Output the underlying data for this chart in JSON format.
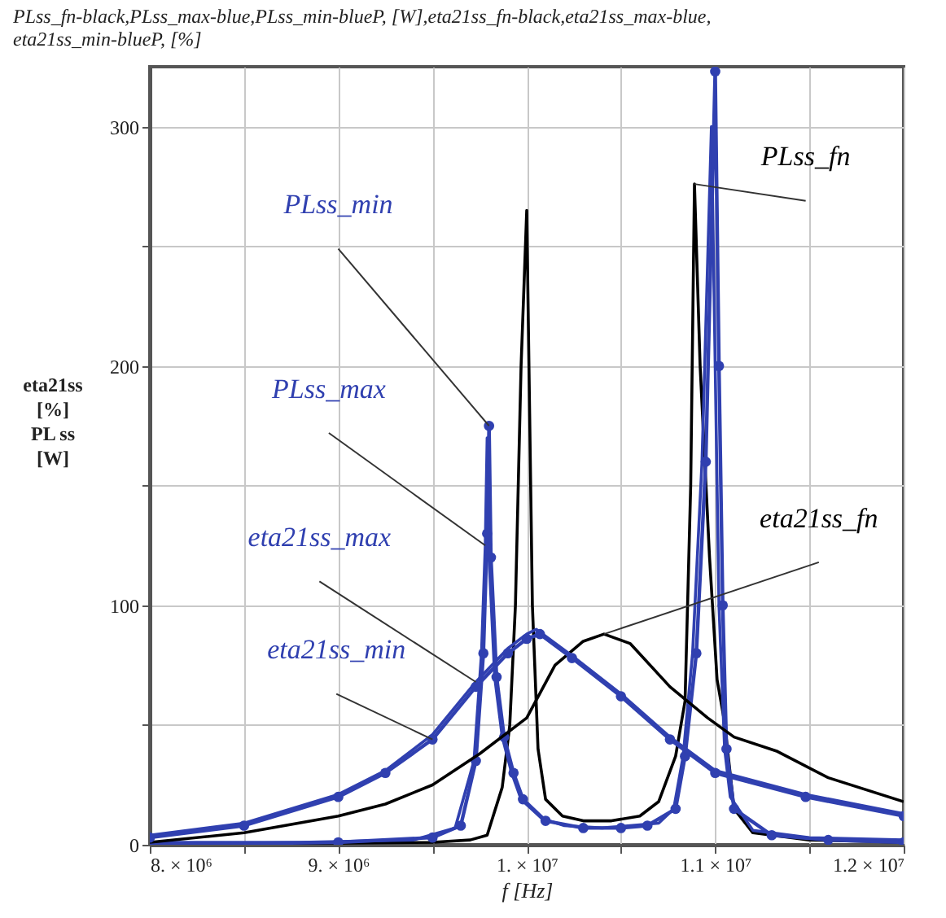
{
  "chart_data": {
    "type": "line",
    "title": "PLss_fn-black,PLss_max-blue,PLss_min-blueP, [W],eta21ss_fn-black,eta21ss_max-blue,\neta21ss_min-blueP, [%]",
    "xlabel": "f [Hz]",
    "ylabel": "eta21ss\n[%]\n\nPL ss\n[W]",
    "xlim": [
      8000000,
      12000000
    ],
    "ylim": [
      0,
      325
    ],
    "xticks": [
      {
        "value": 8000000,
        "label": "8. × 10⁶"
      },
      {
        "value": 8500000,
        "label": null
      },
      {
        "value": 9000000,
        "label": "9. × 10⁶"
      },
      {
        "value": 9500000,
        "label": null
      },
      {
        "value": 10000000,
        "label": "1. × 10⁷"
      },
      {
        "value": 10500000,
        "label": null
      },
      {
        "value": 11000000,
        "label": "1.1 × 10⁷"
      },
      {
        "value": 11500000,
        "label": null
      },
      {
        "value": 12000000,
        "label": "1.2 × 10⁷"
      }
    ],
    "yticks": [
      0,
      {
        "value": 50,
        "label": null
      },
      100,
      {
        "value": 150,
        "label": null
      },
      200,
      {
        "value": 250,
        "label": null
      },
      300
    ],
    "grid": true,
    "series": [
      {
        "name": "PLss_fn",
        "color": "#000000",
        "x": [
          8000000,
          9500000,
          9700000,
          9790000,
          9870000,
          9910000,
          9940000,
          9970000,
          10000000,
          10030000,
          10060000,
          10100000,
          10190000,
          10300000,
          10450000,
          10600000,
          10700000,
          10790000,
          10840000,
          10870000,
          10890000,
          10920000,
          10970000,
          11010000,
          11050000,
          11100000,
          11200000,
          11500000,
          12000000
        ],
        "values": [
          0,
          1,
          2,
          4,
          24,
          50,
          100,
          200,
          265,
          100,
          40,
          19,
          12,
          10,
          10,
          12,
          18,
          37,
          60,
          150,
          276,
          200,
          120,
          69,
          51,
          15,
          5,
          2,
          1
        ]
      },
      {
        "name": "PLss_max",
        "color": "#3040b0",
        "x": [
          8000000,
          8800000,
          9400000,
          9620000,
          9720000,
          9760000,
          9780000,
          9790000,
          9800000,
          9830000,
          9870000,
          9920000,
          9970000,
          10080000,
          10200000,
          10400000,
          10700000,
          10780000,
          10830000,
          10880000,
          10930000,
          10980000,
          11000000,
          11020000,
          11050000,
          11080000,
          11200000,
          11500000,
          12000000
        ],
        "values": [
          1,
          1,
          2,
          7,
          35,
          80,
          125,
          170,
          120,
          70,
          45,
          30,
          19,
          11,
          8,
          7,
          9,
          15,
          37,
          80,
          160,
          300,
          200,
          100,
          40,
          20,
          6,
          3,
          2
        ]
      },
      {
        "name": "PLss_min",
        "color": "#3040b0",
        "marker": "circle",
        "x": [
          8000000,
          9000000,
          9500000,
          9650000,
          9730000,
          9770000,
          9790000,
          9800000,
          9810000,
          9840000,
          9880000,
          9930000,
          9980000,
          10100000,
          10300000,
          10500000,
          10640000,
          10790000,
          10840000,
          10900000,
          10950000,
          11000000,
          11020000,
          11040000,
          11060000,
          11100000,
          11300000,
          11600000,
          12000000
        ],
        "values": [
          0,
          1,
          3,
          8,
          35,
          80,
          130,
          175,
          120,
          70,
          45,
          30,
          19,
          10,
          7,
          7,
          8,
          15,
          37,
          80,
          160,
          323,
          200,
          100,
          40,
          15,
          4,
          2,
          1
        ]
      },
      {
        "name": "eta21ss_fn",
        "color": "#000000",
        "x": [
          8000000,
          8500000,
          9000000,
          9250000,
          9500000,
          9750000,
          10000000,
          10150000,
          10300000,
          10410000,
          10550000,
          10760000,
          10960000,
          11100000,
          11330000,
          11600000,
          12000000
        ],
        "values": [
          1,
          5,
          12,
          17,
          25,
          38,
          53,
          75,
          85,
          88,
          84,
          66,
          53,
          45,
          39,
          28,
          18
        ]
      },
      {
        "name": "eta21ss_max",
        "color": "#3040b0",
        "x": [
          8000000,
          8500000,
          9000000,
          9250000,
          9500000,
          9730000,
          9900000,
          10000000,
          10050000,
          10240000,
          10500000,
          10760000,
          11000000,
          11480000,
          12000000
        ],
        "values": [
          4,
          9,
          21,
          31,
          46,
          68,
          82,
          88,
          90,
          79,
          63,
          45,
          31,
          21,
          13
        ]
      },
      {
        "name": "eta21ss_min",
        "color": "#3040b0",
        "marker": "circle",
        "x": [
          8000000,
          8500000,
          9000000,
          9250000,
          9500000,
          9730000,
          9900000,
          10000000,
          10070000,
          10240000,
          10500000,
          10760000,
          11000000,
          11480000,
          12000000
        ],
        "values": [
          3,
          8,
          20,
          30,
          44,
          66,
          80,
          86,
          88,
          78,
          62,
          44,
          30,
          20,
          12
        ]
      }
    ]
  }
}
